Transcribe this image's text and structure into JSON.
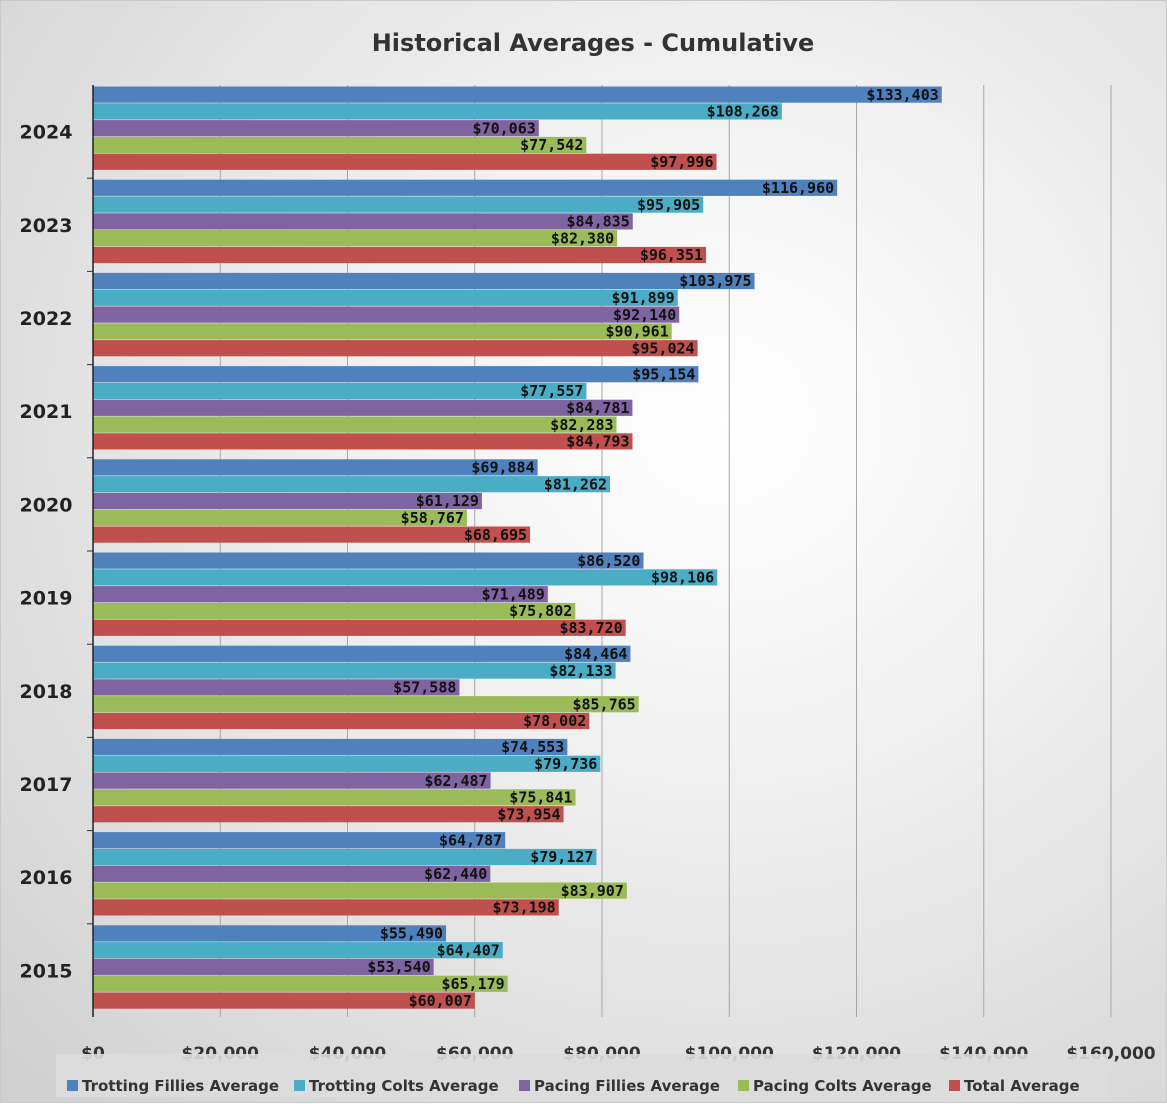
{
  "chart_data": {
    "type": "bar",
    "orientation": "horizontal",
    "title": "Historical Averages - Cumulative",
    "categories": [
      "2024",
      "2023",
      "2022",
      "2021",
      "2020",
      "2019",
      "2018",
      "2017",
      "2016",
      "2015"
    ],
    "series": [
      {
        "name": "Trotting Fillies Average",
        "color": "#4f81bd",
        "values": [
          133403,
          116960,
          103975,
          95154,
          69884,
          86520,
          84464,
          74553,
          64787,
          55490
        ]
      },
      {
        "name": "Trotting Colts Average",
        "color": "#4bacc6",
        "values": [
          108268,
          95905,
          91899,
          77557,
          81262,
          98106,
          82133,
          79736,
          79127,
          64407
        ]
      },
      {
        "name": "Pacing Fillies Average",
        "color": "#8064a2",
        "values": [
          70063,
          84835,
          92140,
          84781,
          61129,
          71489,
          57588,
          62487,
          62440,
          53540
        ]
      },
      {
        "name": "Pacing Colts Average",
        "color": "#9bbb59",
        "values": [
          77542,
          82380,
          90961,
          82283,
          58767,
          75802,
          85765,
          75841,
          83907,
          65179
        ]
      },
      {
        "name": "Total Average",
        "color": "#c0504d",
        "values": [
          97996,
          96351,
          95024,
          84793,
          68695,
          83720,
          78002,
          73954,
          73198,
          60007
        ]
      }
    ],
    "data_labels": [
      [
        "$133,403",
        "$116,960",
        "$103,975",
        "$95,154",
        "$69,884",
        "$86,520",
        "$84,464",
        "$74,553",
        "$64,787",
        "$55,490"
      ],
      [
        "$108,268",
        "$95,905",
        "$91,899",
        "$77,557",
        "$81,262",
        "$98,106",
        "$82,133",
        "$79,736",
        "$79,127",
        "$64,407"
      ],
      [
        "$70,063",
        "$84,835",
        "$92,140",
        "$84,781",
        "$61,129",
        "$71,489",
        "$57,588",
        "$62,487",
        "$62,440",
        "$53,540"
      ],
      [
        "$77,542",
        "$82,380",
        "$90,961",
        "$82,283",
        "$58,767",
        "$75,802",
        "$85,765",
        "$75,841",
        "$83,907",
        "$65,179"
      ],
      [
        "$97,996",
        "$96,351",
        "$95,024",
        "$84,793",
        "$68,695",
        "$83,720",
        "$78,002",
        "$73,954",
        "$73,198",
        "$60,007"
      ]
    ],
    "xlim": [
      0,
      160000
    ],
    "x_ticks": [
      0,
      20000,
      40000,
      60000,
      80000,
      100000,
      120000,
      140000,
      160000
    ],
    "x_tick_labels": [
      "$0",
      "$20,000",
      "$40,000",
      "$60,000",
      "$80,000",
      "$100,000",
      "$120,000",
      "$140,000",
      "$160,000"
    ],
    "xlabel": "",
    "ylabel": "",
    "grid": "vertical",
    "legend": "bottom"
  }
}
